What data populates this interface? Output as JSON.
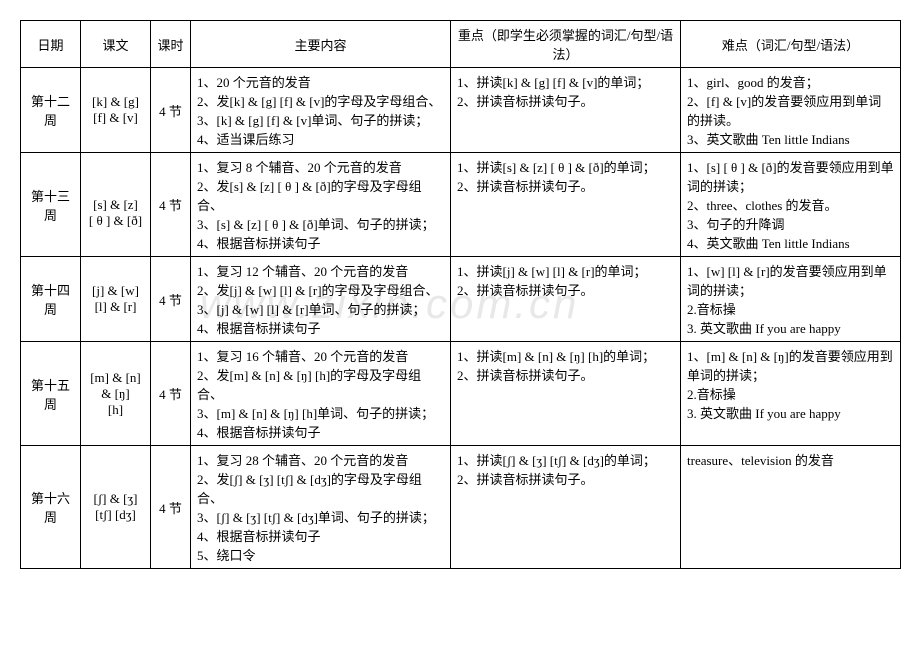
{
  "headers": {
    "date": "日期",
    "text": "课文",
    "period": "课时",
    "main": "主要内容",
    "focus": "重点（即学生必须掌握的词汇/句型/语法）",
    "difficulty": "难点（词汇/句型/语法）"
  },
  "watermark": "www.zixin.com.cn",
  "rows": [
    {
      "date": "第十二周",
      "text": "[k] & [g]\n[f] & [v]",
      "period": "4 节",
      "main": "1、20 个元音的发音\n2、发[k] & [g] [f] & [v]的字母及字母组合、\n3、[k] & [g] [f] & [v]单词、句子的拼读；\n4、适当课后练习",
      "focus": "1、拼读[k] & [g] [f] & [v]的单词；\n2、拼读音标拼读句子。",
      "difficulty": "1、girl、good 的发音；\n2、[f] & [v]的发音要领应用到单词的拼读。\n3、英文歌曲 Ten little Indians"
    },
    {
      "date": "第十三周",
      "text": "\n[s] & [z]\n[ θ ] & [ð]",
      "period": "4 节",
      "main": "1、复习 8 个辅音、20 个元音的发音\n2、发[s] & [z] [ θ ] & [ð]的字母及字母组合、\n3、[s] & [z] [ θ ] & [ð]单词、句子的拼读；\n4、根据音标拼读句子",
      "focus": "1、拼读[s] & [z] [ θ ] & [ð]的单词；\n2、拼读音标拼读句子。",
      "difficulty": "1、[s] [ θ ] & [ð]的发音要领应用到单词的拼读；\n2、three、clothes 的发音。\n3、句子的升降调\n4、英文歌曲 Ten little Indians"
    },
    {
      "date": "第十四周",
      "text": "[j] & [w]\n[l] & [r]",
      "period": "4 节",
      "main": "1、复习 12 个辅音、20 个元音的发音\n2、发[j] & [w] [l] & [r]的字母及字母组合、\n3、[j] & [w] [l] & [r]单词、句子的拼读；\n4、根据音标拼读句子",
      "focus": "1、拼读[j] & [w] [l] & [r]的单词；\n2、拼读音标拼读句子。",
      "difficulty": "1、[w] [l] & [r]的发音要领应用到单词的拼读；\n2.音标操\n3. 英文歌曲  If you are happy"
    },
    {
      "date": "第十五周",
      "text": "[m] & [n]\n& [ŋ]\n[h]",
      "period": "4 节",
      "main": "1、复习 16 个辅音、20 个元音的发音\n2、发[m] & [n] & [ŋ]    [h]的字母及字母组合、\n3、[m] & [n] & [ŋ]    [h]单词、句子的拼读；\n4、根据音标拼读句子",
      "focus": "1、拼读[m] & [n] & [ŋ]    [h]的单词；\n2、拼读音标拼读句子。",
      "difficulty": "1、[m] & [n] & [ŋ]的发音要领应用到单词的拼读；\n2.音标操\n3. 英文歌曲  If you are happy"
    },
    {
      "date": "第十六周",
      "text": "[ʃ] & [ʒ]\n[tʃ] [dʒ]",
      "period": "4 节",
      "main": "1、复习 28 个辅音、20 个元音的发音\n2、发[ʃ] & [ʒ] [tʃ] & [dʒ]的字母及字母组合、\n3、[ʃ] & [ʒ] [tʃ] & [dʒ]单词、句子的拼读；\n4、根据音标拼读句子\n5、绕口令",
      "focus": "1、拼读[ʃ] & [ʒ] [tʃ] & [dʒ]的单词；\n2、拼读音标拼读句子。",
      "difficulty": "treasure、television 的发音"
    }
  ]
}
